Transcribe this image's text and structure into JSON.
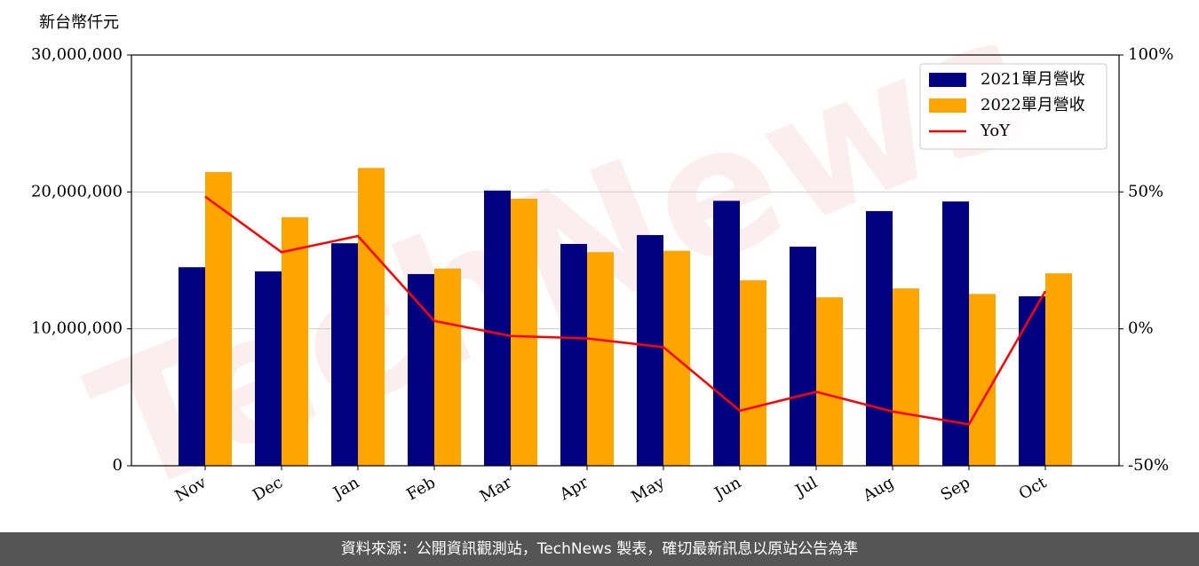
{
  "chart_data": {
    "type": "bar",
    "y_label": "新台幣仟元",
    "watermark": "TechNews",
    "categories": [
      "Nov",
      "Dec",
      "Jan",
      "Feb",
      "Mar",
      "Apr",
      "May",
      "Jun",
      "Jul",
      "Aug",
      "Sep",
      "Oct"
    ],
    "series": [
      {
        "name": "2021單月營收",
        "color": "#000080",
        "values": [
          14500000,
          14200000,
          16250000,
          14000000,
          20100000,
          16200000,
          16850000,
          19350000,
          16000000,
          18600000,
          19300000,
          12380000
        ]
      },
      {
        "name": "2022單月營收",
        "color": "#ffa500",
        "values": [
          21450000,
          18150000,
          21750000,
          14400000,
          19500000,
          15600000,
          15700000,
          13550000,
          12300000,
          12950000,
          12550000,
          14050000
        ]
      },
      {
        "name": "YoY",
        "type": "line",
        "axis": "y2",
        "color": "#ff0000",
        "values": [
          48.3,
          28,
          33.9,
          2.9,
          -2.6,
          -3.5,
          -6.7,
          -29.9,
          -23,
          -30.2,
          -34.9,
          13.8
        ]
      }
    ],
    "ylim": [
      0,
      30000000
    ],
    "yticks": [
      0,
      {
        "value": 10000000,
        "label": "10,000,000"
      },
      {
        "value": 20000000,
        "label": "20,000,000"
      },
      {
        "value": 30000000,
        "label": "30,000,000"
      }
    ],
    "y2lim": [
      -50,
      100
    ],
    "y2ticks": [
      {
        "value": -50,
        "label": "-50%"
      },
      {
        "value": 0,
        "label": "0%"
      },
      {
        "value": 50,
        "label": "50%"
      },
      {
        "value": 100,
        "label": "100%"
      }
    ],
    "grid": true,
    "legend": "upper right"
  },
  "footer": "資料來源：公開資訊觀測站，TechNews 製表，確切最新訊息以原站公告為準"
}
